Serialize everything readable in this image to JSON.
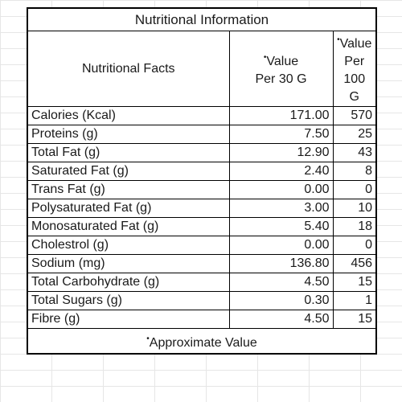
{
  "title": "Nutritional Information",
  "headers": {
    "facts": "Nutritional Facts",
    "per30_line1": "Value",
    "per30_line2": "Per 30 G",
    "per100_line1": "Value",
    "per100_line2": "Per 100",
    "per100_line3": "G",
    "marker": "•"
  },
  "rows": [
    {
      "label": "Calories (Kcal)",
      "per30": "171.00",
      "per100": "570"
    },
    {
      "label": "Proteins (g)",
      "per30": "7.50",
      "per100": "25"
    },
    {
      "label": "Total Fat (g)",
      "per30": "12.90",
      "per100": "43"
    },
    {
      "label": "Saturated Fat (g)",
      "per30": "2.40",
      "per100": "8"
    },
    {
      "label": "Trans Fat (g)",
      "per30": "0.00",
      "per100": "0"
    },
    {
      "label": "Polysaturated Fat (g)",
      "per30": "3.00",
      "per100": "10"
    },
    {
      "label": "Monosaturated Fat (g)",
      "per30": "5.40",
      "per100": "18"
    },
    {
      "label": "Cholestrol (g)",
      "per30": "0.00",
      "per100": "0"
    },
    {
      "label": "Sodium  (mg)",
      "per30": "136.80",
      "per100": "456"
    },
    {
      "label": "Total Carbohydrate (g)",
      "per30": "4.50",
      "per100": "15"
    },
    {
      "label": "Total Sugars (g)",
      "per30": "0.30",
      "per100": "1"
    },
    {
      "label": "Fibre (g)",
      "per30": "4.50",
      "per100": "15"
    }
  ],
  "footnote": {
    "marker": "•",
    "text": "Approximate Value"
  }
}
